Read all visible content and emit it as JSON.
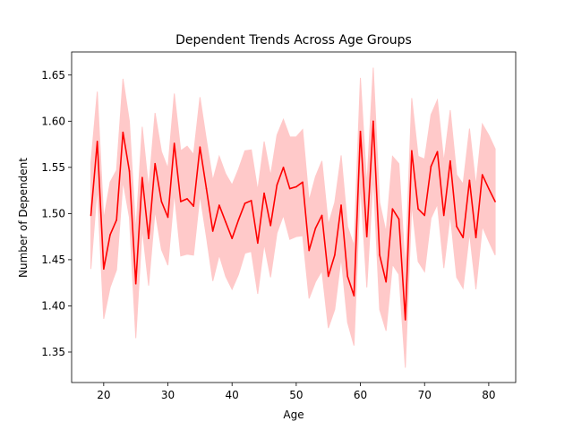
{
  "chart_data": {
    "type": "line",
    "title": "Dependent Trends Across Age Groups",
    "xlabel": "Age",
    "ylabel": "Number of Dependent",
    "xlim": [
      15,
      84.2
    ],
    "ylim": [
      1.317,
      1.675
    ],
    "xticks": [
      20,
      30,
      40,
      50,
      60,
      70,
      80
    ],
    "yticks": [
      1.35,
      1.4,
      1.45,
      1.5,
      1.55,
      1.6,
      1.65
    ],
    "ytick_labels": [
      "1.35",
      "1.40",
      "1.45",
      "1.50",
      "1.55",
      "1.60",
      "1.65"
    ],
    "grid": false,
    "line_color": "#ff0000",
    "band_color": "#ffc9c9",
    "series": [
      {
        "x": [
          18,
          19,
          20,
          21,
          22,
          23,
          24,
          25,
          26,
          27,
          28,
          29,
          30,
          31,
          32,
          33,
          34,
          35,
          36,
          37,
          38,
          39,
          40,
          41,
          42,
          43,
          44,
          45,
          46,
          47,
          48,
          49,
          50,
          51,
          52,
          53,
          54,
          55,
          56,
          57,
          58,
          59,
          60,
          61,
          62,
          63,
          64,
          65,
          66,
          67,
          68,
          69,
          70,
          71,
          72,
          73,
          74,
          75,
          76,
          77,
          78,
          79,
          80,
          81
        ],
        "y": [
          1.498,
          1.578,
          1.44,
          1.477,
          1.493,
          1.588,
          1.546,
          1.424,
          1.539,
          1.473,
          1.554,
          1.513,
          1.496,
          1.576,
          1.513,
          1.516,
          1.508,
          1.572,
          1.527,
          1.481,
          1.509,
          1.491,
          1.473,
          1.493,
          1.511,
          1.514,
          1.468,
          1.522,
          1.487,
          1.531,
          1.55,
          1.527,
          1.529,
          1.534,
          1.46,
          1.484,
          1.498,
          1.432,
          1.455,
          1.509,
          1.432,
          1.411,
          1.589,
          1.475,
          1.6,
          1.455,
          1.426,
          1.505,
          1.494,
          1.385,
          1.568,
          1.505,
          1.498,
          1.551,
          1.567,
          1.498,
          1.557,
          1.486,
          1.474,
          1.536,
          1.474,
          1.542,
          1.527,
          1.513
        ],
        "lower": [
          1.44,
          1.528,
          1.386,
          1.42,
          1.439,
          1.535,
          1.496,
          1.365,
          1.484,
          1.422,
          1.503,
          1.461,
          1.444,
          1.522,
          1.454,
          1.456,
          1.455,
          1.52,
          1.475,
          1.427,
          1.455,
          1.432,
          1.418,
          1.434,
          1.457,
          1.459,
          1.413,
          1.467,
          1.431,
          1.479,
          1.498,
          1.472,
          1.475,
          1.476,
          1.408,
          1.426,
          1.438,
          1.376,
          1.396,
          1.452,
          1.382,
          1.357,
          1.532,
          1.42,
          1.541,
          1.396,
          1.373,
          1.445,
          1.434,
          1.333,
          1.51,
          1.448,
          1.437,
          1.495,
          1.51,
          1.441,
          1.499,
          1.431,
          1.419,
          1.479,
          1.418,
          1.486,
          1.47,
          1.455
        ],
        "upper": [
          1.555,
          1.632,
          1.494,
          1.534,
          1.547,
          1.646,
          1.6,
          1.48,
          1.594,
          1.527,
          1.609,
          1.567,
          1.549,
          1.63,
          1.568,
          1.573,
          1.564,
          1.626,
          1.58,
          1.536,
          1.562,
          1.543,
          1.531,
          1.548,
          1.568,
          1.569,
          1.525,
          1.578,
          1.541,
          1.585,
          1.602,
          1.583,
          1.583,
          1.591,
          1.514,
          1.54,
          1.557,
          1.488,
          1.512,
          1.563,
          1.486,
          1.465,
          1.647,
          1.53,
          1.658,
          1.512,
          1.48,
          1.562,
          1.554,
          1.44,
          1.625,
          1.562,
          1.559,
          1.607,
          1.623,
          1.556,
          1.612,
          1.542,
          1.532,
          1.592,
          1.53,
          1.597,
          1.585,
          1.57
        ]
      }
    ]
  }
}
